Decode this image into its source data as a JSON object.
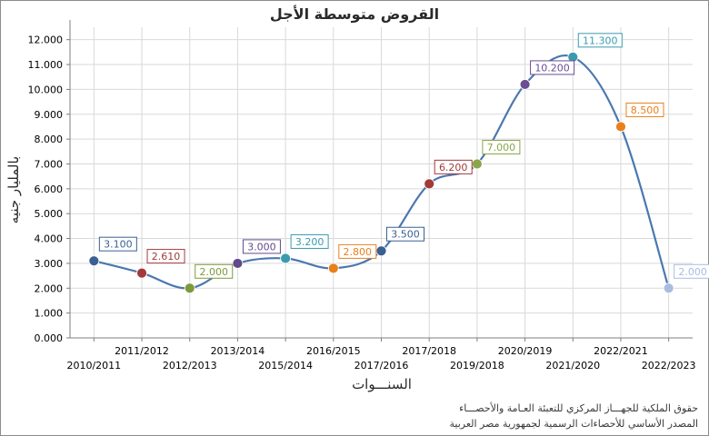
{
  "chart_data": {
    "type": "line",
    "title": "القروض متوسطة الأجل",
    "xlabel": "السنـــوات",
    "ylabel": "بالمليار جنيه",
    "categories": [
      "2010/2011",
      "2011/2012",
      "2012/2013",
      "2013/2014",
      "2014/2015",
      "2015/2016",
      "2016/2017",
      "2017/2018",
      "2018/2019",
      "2019/2020",
      "2020/2021",
      "2021/2022",
      "2022/2023"
    ],
    "category_labels": [
      "2010/2011",
      "2011/2012",
      "2012/2013",
      "2013/2014",
      "2015/2014",
      "2016/2015",
      "2017/2016",
      "2017/2018",
      "2019/2018",
      "2020/2019",
      "2021/2020",
      "2022/2021",
      "2022/2023"
    ],
    "values": [
      3.1,
      2.61,
      2.0,
      3.0,
      3.2,
      2.8,
      3.5,
      6.2,
      7.0,
      10.2,
      11.3,
      8.5,
      2.0
    ],
    "value_labels": [
      "3.100",
      "2.610",
      "2.000",
      "3.000",
      "3.200",
      "2.800",
      "3.500",
      "6.200",
      "7.000",
      "10.200",
      "11.300",
      "8.500",
      "2.000"
    ],
    "point_colors": [
      "#3a5f93",
      "#a33a3a",
      "#7d9a3c",
      "#5f4a8b",
      "#3a9bae",
      "#e8801f",
      "#3a5f93",
      "#a33a3a",
      "#8ba64a",
      "#6a4d94",
      "#3a9bae",
      "#e8801f",
      "#a9bde0"
    ],
    "line_color": "#4a78b0",
    "ylim": [
      0,
      12.5
    ],
    "yticks": [
      0,
      1,
      2,
      3,
      4,
      5,
      6,
      7,
      8,
      9,
      10,
      11,
      12
    ],
    "ytick_labels": [
      "0.000",
      "1.000",
      "2.000",
      "3.000",
      "4.000",
      "5.000",
      "6.000",
      "7.000",
      "8.000",
      "9.000",
      "10.000",
      "11.000",
      "12.000"
    ],
    "grid": true,
    "legend": "none"
  },
  "footer": {
    "source_line1": "حقوق الملكية للجهـــاز المركزي للتعبئة العـامة والأحصـــاء",
    "source_line2": "المصدر الأساسي للأحصاءات الرسمية لجمهورية مصر العربية"
  }
}
